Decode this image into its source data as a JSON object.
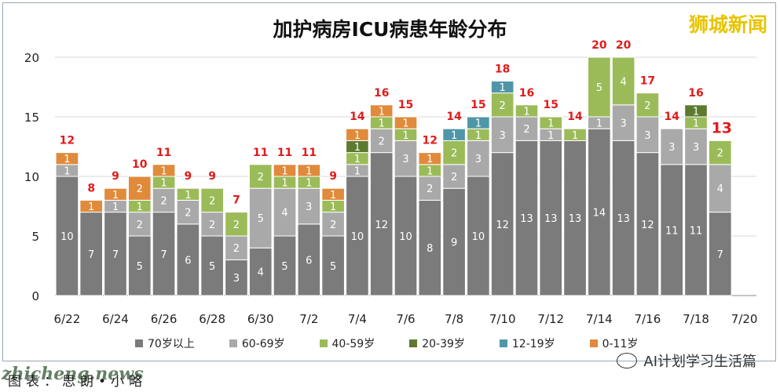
{
  "header": {
    "title": "加护病房ICU病患年龄分布",
    "brand": "狮城新闻"
  },
  "footer": {
    "watermark_left": "zhicheng.news",
    "source_text": "图表：思朗•小略",
    "watermark_right": "AI计划学习生活篇"
  },
  "colors": {
    "70岁以上": "#7b7b7b",
    "60-69岁": "#a9a9a9",
    "40-59岁": "#9bbb59",
    "20-39岁": "#5d7a2f",
    "12-19岁": "#4f97a8",
    "0-11岁": "#e08a3c",
    "total_label": "#e01b1b"
  },
  "chart_data": {
    "type": "bar",
    "stacked": true,
    "title": "加护病房ICU病患年龄分布",
    "categories": [
      "6/22",
      "6/23",
      "6/24",
      "6/25",
      "6/26",
      "6/27",
      "6/28",
      "6/29",
      "6/30",
      "7/1",
      "7/2",
      "7/3",
      "7/4",
      "7/5",
      "7/6",
      "7/7",
      "7/8",
      "7/9",
      "7/10",
      "7/11",
      "7/12",
      "7/13",
      "7/14",
      "7/15",
      "7/16",
      "7/17",
      "7/18",
      "7/19",
      "7/20"
    ],
    "x_tick_labels": [
      "6/22",
      "6/24",
      "6/26",
      "6/28",
      "6/30",
      "7/2",
      "7/4",
      "7/6",
      "7/8",
      "7/10",
      "7/12",
      "7/14",
      "7/16",
      "7/18",
      "7/20"
    ],
    "ylim": [
      0,
      20
    ],
    "yticks": [
      0,
      5,
      10,
      15,
      20
    ],
    "grid": true,
    "legend_position": "bottom",
    "series": [
      {
        "name": "70岁以上",
        "values": [
          10,
          7,
          7,
          5,
          7,
          6,
          5,
          3,
          4,
          5,
          6,
          5,
          10,
          12,
          10,
          8,
          9,
          10,
          12,
          13,
          13,
          13,
          14,
          13,
          12,
          11,
          11,
          7,
          0
        ]
      },
      {
        "name": "60-69岁",
        "values": [
          1,
          0,
          1,
          2,
          2,
          2,
          2,
          2,
          5,
          4,
          3,
          2,
          1,
          2,
          3,
          2,
          2,
          3,
          3,
          2,
          1,
          0,
          1,
          3,
          3,
          3,
          3,
          4,
          0
        ]
      },
      {
        "name": "40-59岁",
        "values": [
          0,
          0,
          0,
          1,
          1,
          1,
          2,
          2,
          2,
          1,
          1,
          1,
          1,
          1,
          1,
          1,
          2,
          1,
          2,
          1,
          1,
          1,
          5,
          4,
          2,
          0,
          1,
          2,
          0
        ]
      },
      {
        "name": "20-39岁",
        "values": [
          0,
          0,
          0,
          0,
          0,
          0,
          0,
          0,
          0,
          0,
          0,
          0,
          1,
          0,
          0,
          0,
          0,
          0,
          0,
          0,
          0,
          0,
          0,
          0,
          0,
          0,
          1,
          0,
          0
        ]
      },
      {
        "name": "12-19岁",
        "values": [
          0,
          0,
          0,
          0,
          0,
          0,
          0,
          0,
          0,
          0,
          0,
          0,
          0,
          0,
          0,
          0,
          1,
          1,
          1,
          0,
          0,
          0,
          0,
          0,
          0,
          0,
          0,
          0,
          0
        ]
      },
      {
        "name": "0-11岁",
        "values": [
          1,
          1,
          1,
          2,
          1,
          0,
          0,
          0,
          0,
          1,
          1,
          1,
          1,
          1,
          1,
          1,
          0,
          0,
          0,
          0,
          0,
          0,
          0,
          0,
          0,
          0,
          0,
          0,
          0
        ]
      }
    ],
    "totals": [
      12,
      8,
      9,
      10,
      11,
      9,
      9,
      7,
      11,
      11,
      11,
      9,
      14,
      16,
      15,
      12,
      14,
      15,
      18,
      16,
      15,
      14,
      20,
      20,
      17,
      14,
      16,
      13,
      null
    ]
  }
}
